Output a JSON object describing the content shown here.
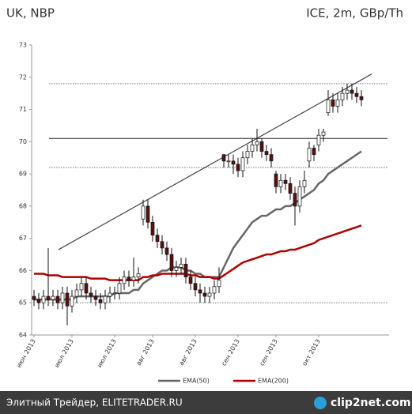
{
  "chart_data": {
    "type": "candlestick",
    "title": "UK, NBP",
    "subtitle": "ICE, 2m, GBp/Th",
    "categories": [
      "июн 2013",
      null,
      null,
      null,
      null,
      null,
      null,
      null,
      "июл 2013",
      null,
      null,
      null,
      null,
      null,
      null,
      null,
      null,
      "июл 2013",
      null,
      null,
      null,
      null,
      null,
      null,
      null,
      "авг 2013",
      null,
      null,
      null,
      null,
      null,
      null,
      null,
      null,
      "авг 2013",
      null,
      null,
      null,
      null,
      null,
      null,
      null,
      null,
      "сен 2013",
      null,
      null,
      null,
      null,
      null,
      null,
      null,
      "сен 2013",
      null,
      null,
      null,
      null,
      null,
      null,
      null,
      null,
      "окт 2013",
      null,
      null,
      null,
      null,
      null,
      null,
      null,
      null,
      null
    ],
    "open": [
      65.2,
      65.1,
      65.0,
      65.2,
      65.1,
      65.2,
      65.0,
      65.3,
      64.9,
      65.2,
      65.4,
      65.6,
      65.3,
      65.2,
      65.1,
      65.0,
      65.2,
      65.3,
      65.3,
      65.6,
      65.8,
      65.7,
      65.8,
      67.6,
      68.0,
      67.5,
      67.1,
      66.9,
      66.7,
      66.5,
      66.0,
      66.1,
      66.2,
      65.8,
      65.6,
      65.4,
      65.3,
      65.2,
      65.3,
      65.5,
      69.6,
      69.4,
      69.4,
      69.3,
      69.1,
      69.5,
      69.7,
      69.9,
      70.0,
      69.7,
      69.6,
      69.0,
      68.6,
      68.8,
      68.7,
      68.4,
      68.0,
      68.6,
      69.4,
      69.8,
      69.9,
      70.2,
      70.9,
      71.3,
      71.1,
      71.3,
      71.5,
      71.6,
      71.5,
      71.4
    ],
    "high": [
      65.4,
      65.3,
      65.4,
      66.7,
      65.4,
      65.4,
      65.5,
      65.5,
      65.4,
      65.6,
      65.8,
      65.8,
      65.5,
      65.4,
      65.3,
      65.4,
      65.5,
      65.5,
      65.8,
      66.0,
      66.0,
      66.4,
      66.1,
      68.2,
      68.2,
      67.7,
      67.3,
      67.1,
      66.9,
      66.7,
      66.3,
      66.4,
      66.4,
      66.0,
      65.8,
      65.6,
      65.5,
      65.5,
      65.7,
      66.1,
      69.6,
      69.6,
      69.6,
      69.5,
      69.7,
      69.9,
      70.1,
      70.4,
      70.1,
      69.9,
      69.8,
      69.1,
      69.0,
      69.0,
      68.9,
      68.6,
      68.8,
      69.1,
      70.0,
      69.9,
      70.4,
      70.4,
      71.6,
      71.5,
      71.5,
      71.7,
      71.8,
      71.8,
      71.7,
      71.6
    ],
    "low": [
      64.9,
      64.8,
      64.8,
      64.9,
      64.9,
      64.8,
      64.8,
      64.3,
      64.7,
      65.0,
      65.2,
      65.1,
      65.0,
      64.9,
      64.8,
      64.8,
      65.0,
      65.1,
      65.1,
      65.4,
      65.5,
      65.5,
      65.6,
      67.4,
      67.3,
      66.9,
      66.7,
      66.5,
      66.3,
      65.8,
      65.8,
      65.9,
      65.6,
      65.4,
      65.2,
      65.0,
      65.0,
      65.0,
      65.1,
      65.3,
      69.2,
      69.2,
      69.0,
      68.9,
      68.9,
      69.3,
      69.5,
      69.7,
      69.5,
      69.4,
      69.2,
      68.4,
      68.4,
      68.5,
      68.2,
      67.4,
      67.8,
      68.4,
      69.2,
      69.4,
      69.7,
      70.0,
      70.8,
      70.9,
      70.9,
      71.1,
      71.3,
      71.3,
      71.2,
      71.1
    ],
    "close": [
      65.1,
      65.0,
      65.2,
      65.1,
      65.2,
      65.0,
      65.3,
      64.9,
      65.2,
      65.4,
      65.6,
      65.3,
      65.2,
      65.1,
      65.0,
      65.2,
      65.3,
      65.3,
      65.6,
      65.8,
      65.7,
      65.8,
      65.9,
      68.0,
      67.5,
      67.1,
      66.9,
      66.7,
      66.5,
      66.0,
      66.1,
      66.2,
      65.8,
      65.6,
      65.4,
      65.3,
      65.2,
      65.3,
      65.5,
      65.7,
      69.4,
      69.4,
      69.3,
      69.1,
      69.5,
      69.7,
      69.9,
      70.0,
      69.7,
      69.6,
      69.4,
      68.6,
      68.8,
      68.7,
      68.4,
      68.0,
      68.6,
      68.8,
      69.8,
      69.6,
      70.2,
      70.3,
      71.3,
      71.1,
      71.3,
      71.5,
      71.6,
      71.5,
      71.4,
      71.3
    ],
    "up_color": "#ffffff",
    "down_color": "#5a1010",
    "series": [
      {
        "name": "EMA(50)",
        "color": "#666666",
        "values": [
          65.1,
          65.1,
          65.1,
          65.1,
          65.1,
          65.1,
          65.1,
          65.1,
          65.1,
          65.2,
          65.2,
          65.2,
          65.2,
          65.2,
          65.2,
          65.2,
          65.2,
          65.3,
          65.3,
          65.3,
          65.3,
          65.4,
          65.4,
          65.6,
          65.7,
          65.8,
          65.9,
          66.0,
          66.0,
          66.1,
          66.1,
          66.1,
          66.0,
          66.0,
          65.9,
          65.9,
          65.8,
          65.8,
          65.8,
          65.8,
          66.1,
          66.4,
          66.7,
          66.9,
          67.1,
          67.3,
          67.5,
          67.6,
          67.7,
          67.7,
          67.8,
          67.9,
          67.9,
          68.0,
          68.0,
          68.1,
          68.2,
          68.3,
          68.4,
          68.5,
          68.7,
          68.8,
          69.0,
          69.1,
          69.2,
          69.3,
          69.4,
          69.5,
          69.6,
          69.7
        ]
      },
      {
        "name": "EMA(200)",
        "color": "#b00000",
        "values": [
          65.9,
          65.9,
          65.9,
          65.85,
          65.85,
          65.85,
          65.8,
          65.8,
          65.8,
          65.8,
          65.8,
          65.8,
          65.75,
          65.75,
          65.75,
          65.75,
          65.7,
          65.7,
          65.7,
          65.7,
          65.7,
          65.7,
          65.7,
          65.8,
          65.8,
          65.85,
          65.85,
          65.9,
          65.9,
          65.9,
          65.9,
          65.9,
          65.9,
          65.85,
          65.85,
          65.8,
          65.8,
          65.8,
          65.75,
          65.75,
          65.85,
          65.95,
          66.05,
          66.15,
          66.25,
          66.3,
          66.35,
          66.4,
          66.45,
          66.5,
          66.5,
          66.55,
          66.6,
          66.6,
          66.65,
          66.65,
          66.7,
          66.75,
          66.8,
          66.85,
          66.95,
          67.0,
          67.05,
          67.1,
          67.15,
          67.2,
          67.25,
          67.3,
          67.35,
          67.4
        ]
      }
    ],
    "hlines": [
      {
        "value": 71.8,
        "style": "dotted"
      },
      {
        "value": 70.1,
        "style": "solid"
      },
      {
        "value": 69.2,
        "style": "dotted"
      },
      {
        "value": 65.0,
        "style": "dotted"
      }
    ],
    "trendline": {
      "start": 66.65,
      "end": 72.1
    },
    "ylim": [
      64,
      73
    ],
    "yticks": [
      64,
      65,
      66,
      67,
      68,
      69,
      70,
      71,
      72,
      73
    ],
    "footer": "Элитный Трейдер, ELITETRADER.RU",
    "logo": "clip2net.com"
  }
}
